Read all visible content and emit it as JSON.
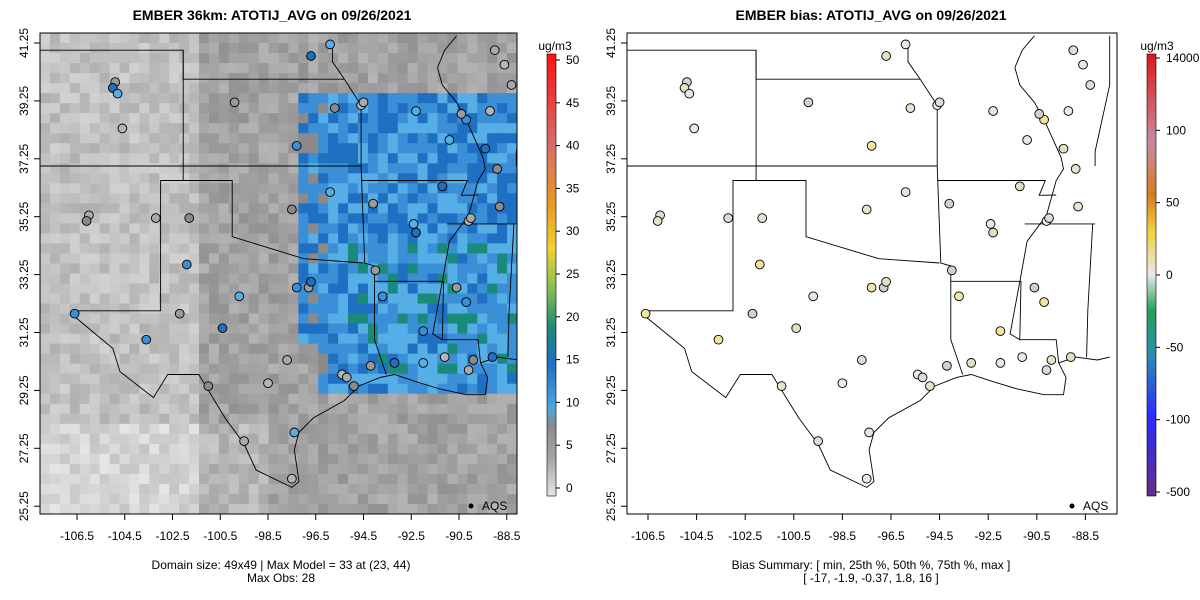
{
  "panels": [
    {
      "title": "EMBER 36km: ATOTIJ_AVG on 09/26/2021",
      "footer_lines": [
        "Domain size: 49x49 | Max Model = 33 at (23, 44)",
        "Max Obs: 28"
      ],
      "legend_label": "AQS"
    },
    {
      "title": "EMBER bias: ATOTIJ_AVG on 09/26/2021",
      "footer_lines": [
        "Bias Summary: [ min, 25th %, 50th %, 75th %, max ]",
        "[ -17,   -1.9,   -0.37,   1.8,   16 ]"
      ],
      "legend_label": "AQS"
    }
  ],
  "x_ticks": [
    "-106.5",
    "-104.5",
    "-102.5",
    "-100.5",
    "-98.5",
    "-96.5",
    "-94.5",
    "-92.5",
    "-90.5",
    "-88.5"
  ],
  "y_ticks": [
    "41.25",
    "39.25",
    "37.25",
    "35.25",
    "33.25",
    "31.25",
    "29.25",
    "27.25",
    "25.25"
  ],
  "colorbar1": {
    "unit": "ug/m3",
    "ticks": [
      "50",
      "45",
      "40",
      "35",
      "30",
      "25",
      "20",
      "15",
      "10",
      "5",
      "0"
    ]
  },
  "colorbar2": {
    "unit": "ug/m3",
    "ticks": [
      "14000",
      "100",
      "50",
      "0",
      "-50",
      "-100",
      "-500"
    ]
  },
  "bias_summary": {
    "min": -17,
    "p25": -1.9,
    "p50": -0.37,
    "p75": 1.8,
    "max": 16
  },
  "domain": {
    "size": "49x49",
    "max_model": 33,
    "max_model_cell": [
      23,
      44
    ],
    "max_obs": 28
  }
}
